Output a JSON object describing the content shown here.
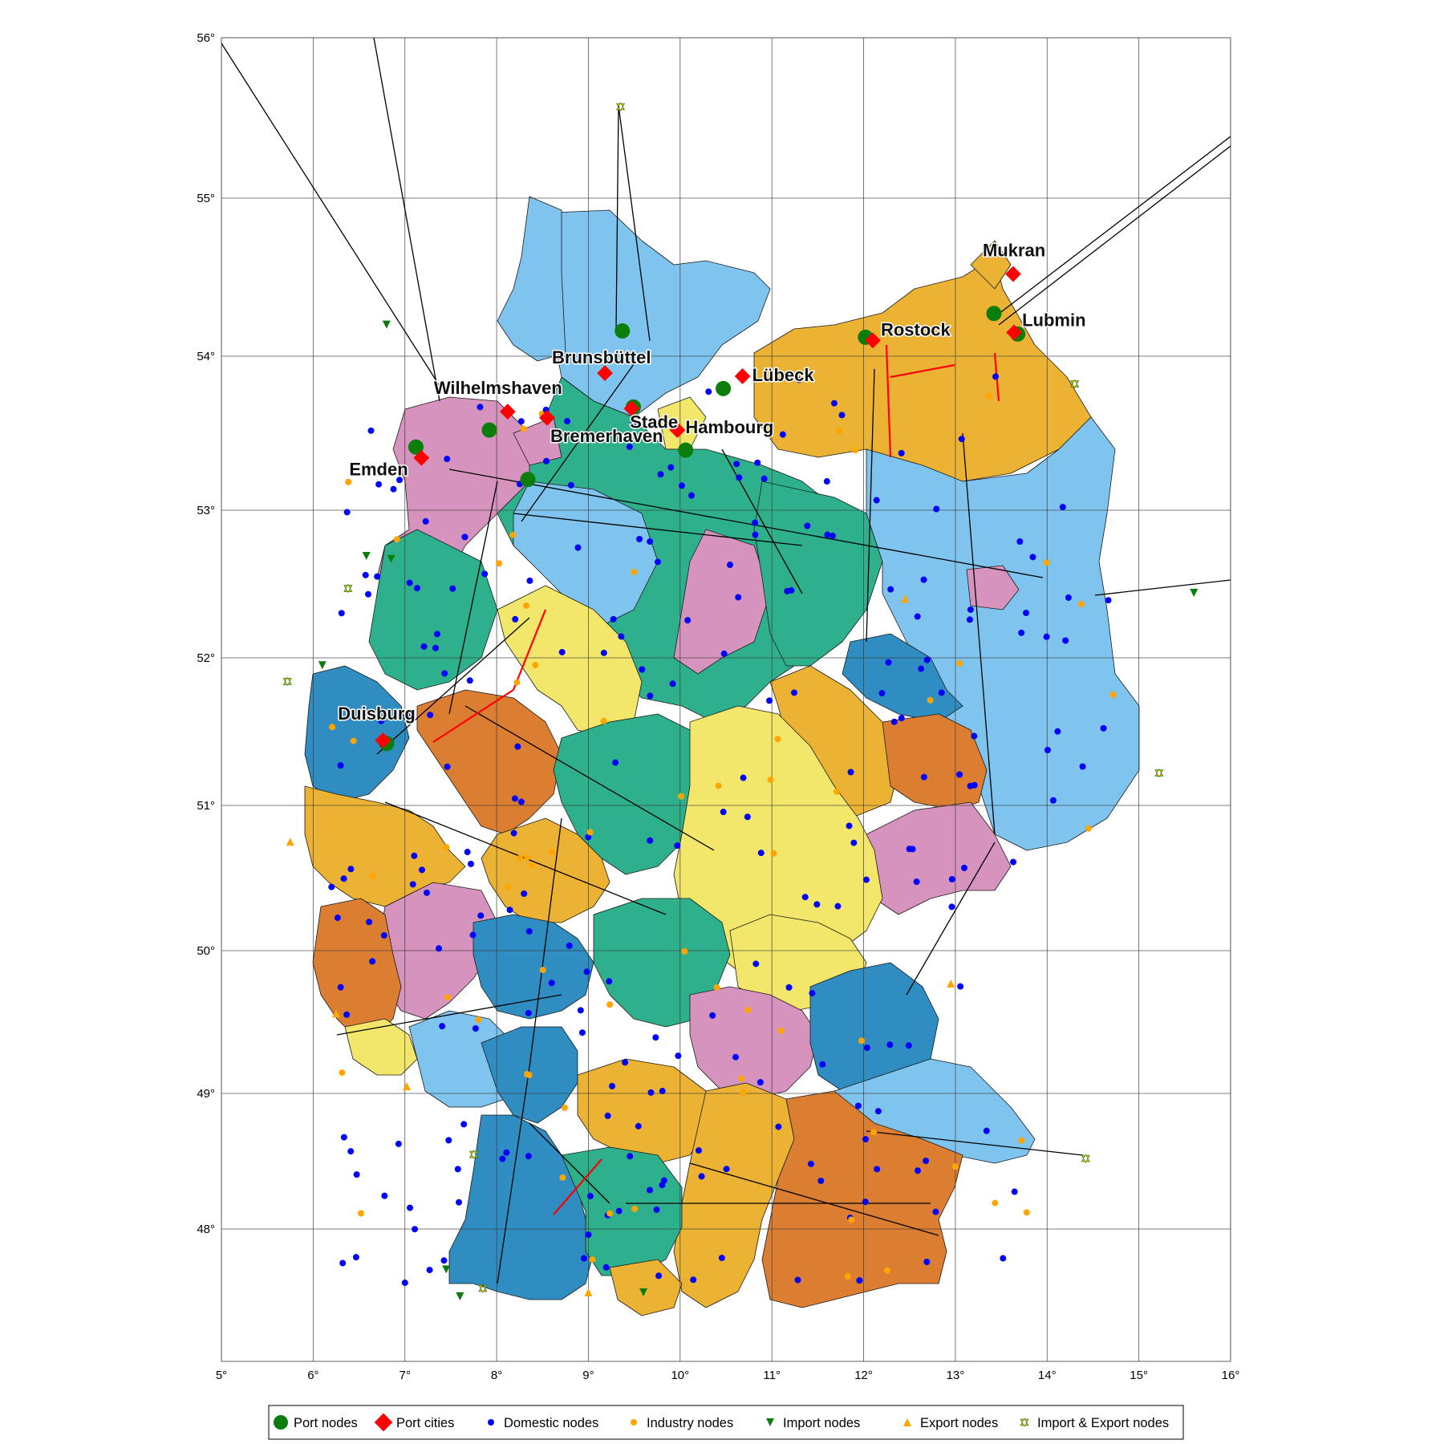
{
  "map": {
    "x_ticks": [
      "5°",
      "6°",
      "7°",
      "8°",
      "9°",
      "10°",
      "11°",
      "12°",
      "13°",
      "14°",
      "15°",
      "16°"
    ],
    "y_ticks": [
      "48°",
      "49°",
      "50°",
      "51°",
      "52°",
      "53°",
      "54°",
      "55°",
      "56°"
    ],
    "lon_range": [
      5,
      16
    ],
    "lat_range": [
      47.1,
      56
    ],
    "grid": true,
    "port_cities": [
      {
        "name": "Mukran",
        "lon": 13.63,
        "lat": 54.52
      },
      {
        "name": "Lubmin",
        "lon": 13.64,
        "lat": 54.15
      },
      {
        "name": "Rostock",
        "lon": 12.1,
        "lat": 54.1
      },
      {
        "name": "Lübeck",
        "lon": 10.68,
        "lat": 53.87
      },
      {
        "name": "Brunsbüttel",
        "lon": 9.18,
        "lat": 53.89
      },
      {
        "name": "Stade",
        "lon": 9.47,
        "lat": 53.66
      },
      {
        "name": "Wilhelmshaven",
        "lon": 8.12,
        "lat": 53.64
      },
      {
        "name": "Bremerhaven",
        "lon": 8.55,
        "lat": 53.6
      },
      {
        "name": "Hambourg",
        "lon": 9.97,
        "lat": 53.52
      },
      {
        "name": "Emden",
        "lon": 7.18,
        "lat": 53.34
      },
      {
        "name": "Duisburg",
        "lon": 6.76,
        "lat": 51.44
      }
    ],
    "port_nodes": [
      {
        "lon": 13.42,
        "lat": 54.27
      },
      {
        "lon": 13.68,
        "lat": 54.14
      },
      {
        "lon": 12.02,
        "lat": 54.12
      },
      {
        "lon": 10.47,
        "lat": 53.79
      },
      {
        "lon": 9.37,
        "lat": 54.16
      },
      {
        "lon": 9.49,
        "lat": 53.67
      },
      {
        "lon": 7.92,
        "lat": 53.52
      },
      {
        "lon": 8.34,
        "lat": 53.2
      },
      {
        "lon": 10.06,
        "lat": 53.39
      },
      {
        "lon": 7.12,
        "lat": 53.41
      },
      {
        "lon": 6.8,
        "lat": 51.42
      }
    ],
    "import_nodes": [
      {
        "lon": 6.8,
        "lat": 54.2
      },
      {
        "lon": 6.58,
        "lat": 52.69
      },
      {
        "lon": 6.85,
        "lat": 52.67
      },
      {
        "lon": 6.1,
        "lat": 51.95
      },
      {
        "lon": 15.6,
        "lat": 52.44
      },
      {
        "lon": 7.45,
        "lat": 47.7
      },
      {
        "lon": 7.6,
        "lat": 47.5
      },
      {
        "lon": 9.6,
        "lat": 47.53
      }
    ],
    "export_nodes": [
      {
        "lon": 5.75,
        "lat": 50.75
      },
      {
        "lon": 6.25,
        "lat": 49.56
      },
      {
        "lon": 7.02,
        "lat": 49.05
      },
      {
        "lon": 9.0,
        "lat": 47.53
      },
      {
        "lon": 12.95,
        "lat": 49.77
      },
      {
        "lon": 12.45,
        "lat": 52.4
      }
    ],
    "import_export_nodes": [
      {
        "lon": 9.35,
        "lat": 55.57
      },
      {
        "lon": 5.72,
        "lat": 51.84
      },
      {
        "lon": 6.38,
        "lat": 52.47
      },
      {
        "lon": 15.22,
        "lat": 51.22
      },
      {
        "lon": 14.42,
        "lat": 48.52
      },
      {
        "lon": 7.75,
        "lat": 48.55
      },
      {
        "lon": 7.85,
        "lat": 47.56
      },
      {
        "lon": 14.3,
        "lat": 53.82
      }
    ]
  },
  "legend": [
    {
      "id": "port",
      "label": "Port nodes",
      "color": "#0a7d0a",
      "icon": "port-node-icon"
    },
    {
      "id": "city",
      "label": "Port cities",
      "color": "#ff0000",
      "icon": "port-city-icon"
    },
    {
      "id": "domestic",
      "label": "Domestic nodes",
      "color": "#0000ff",
      "icon": "domestic-node-icon"
    },
    {
      "id": "industry",
      "label": "Industry nodes",
      "color": "#ffa500",
      "icon": "industry-node-icon"
    },
    {
      "id": "import",
      "label": "Import nodes",
      "color": "#0a7d0a",
      "icon": "import-node-icon"
    },
    {
      "id": "export",
      "label": "Export nodes",
      "color": "#ffa500",
      "icon": "export-node-icon"
    },
    {
      "id": "impexp",
      "label": "Import & Export nodes",
      "color": "#ffa500",
      "icon": "import-export-node-icon"
    }
  ],
  "colors": {
    "region_palette": [
      "#7fc4ee",
      "#ecb234",
      "#d693bd",
      "#2fb08c",
      "#f2e76a",
      "#2f8dc2",
      "#dc7e32"
    ],
    "pipeline": "#000000",
    "pipeline_highlight": "#ff0000"
  }
}
